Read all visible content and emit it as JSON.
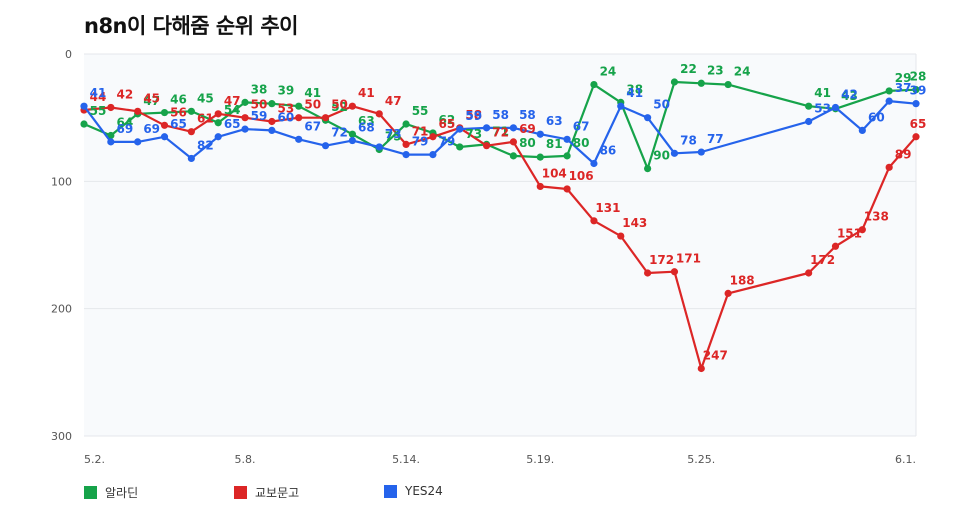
{
  "title": "n8n이 다해줌 순위 추이",
  "chart_data": {
    "type": "line",
    "title": "n8n이 다해줌 순위 추이",
    "xlabel": "",
    "ylabel": "",
    "ylim": [
      300,
      0
    ],
    "y_reversed": true,
    "y_ticks": [
      "0",
      "100",
      "200",
      "300"
    ],
    "x_ticks": [
      "5.2.",
      "5.8.",
      "5.14.",
      "5.19.",
      "5.25.",
      "6.1."
    ],
    "grid": true,
    "legend_position": "bottom",
    "series": [
      {
        "name": "알라딘",
        "color": "#16a34a",
        "points": [
          [
            0,
            55
          ],
          [
            1,
            64
          ],
          [
            2,
            47
          ],
          [
            3,
            46
          ],
          [
            4,
            45
          ],
          [
            5,
            54
          ],
          [
            6,
            38
          ],
          [
            7,
            39
          ],
          [
            8,
            41
          ],
          [
            9,
            52
          ],
          [
            10,
            63
          ],
          [
            11,
            75
          ],
          [
            12,
            55
          ],
          [
            13,
            62
          ],
          [
            14,
            73
          ],
          [
            15,
            71
          ],
          [
            16,
            80
          ],
          [
            17,
            81
          ],
          [
            18,
            80
          ],
          [
            19,
            24
          ],
          [
            20,
            38
          ],
          [
            21,
            90
          ],
          [
            22,
            22
          ],
          [
            23,
            23
          ],
          [
            24,
            24
          ],
          [
            27,
            41
          ],
          [
            28,
            43
          ],
          [
            30,
            29
          ],
          [
            31,
            28
          ]
        ]
      },
      {
        "name": "교보문고",
        "color": "#dc2626",
        "points": [
          [
            0,
            44
          ],
          [
            1,
            42
          ],
          [
            2,
            45
          ],
          [
            3,
            56
          ],
          [
            4,
            61
          ],
          [
            5,
            47
          ],
          [
            6,
            50
          ],
          [
            7,
            53
          ],
          [
            8,
            50
          ],
          [
            9,
            50
          ],
          [
            10,
            41
          ],
          [
            11,
            47
          ],
          [
            12,
            71
          ],
          [
            13,
            65
          ],
          [
            14,
            58
          ],
          [
            15,
            72
          ],
          [
            16,
            69
          ],
          [
            17,
            104
          ],
          [
            18,
            106
          ],
          [
            19,
            131
          ],
          [
            20,
            143
          ],
          [
            21,
            172
          ],
          [
            22,
            171
          ],
          [
            23,
            247
          ],
          [
            24,
            188
          ],
          [
            27,
            172
          ],
          [
            28,
            151
          ],
          [
            29,
            138
          ],
          [
            30,
            89
          ],
          [
            31,
            65
          ]
        ]
      },
      {
        "name": "YES24",
        "color": "#2563eb",
        "points": [
          [
            0,
            41
          ],
          [
            1,
            69
          ],
          [
            2,
            69
          ],
          [
            3,
            65
          ],
          [
            4,
            82
          ],
          [
            5,
            65
          ],
          [
            6,
            59
          ],
          [
            7,
            60
          ],
          [
            8,
            67
          ],
          [
            9,
            72
          ],
          [
            10,
            68
          ],
          [
            11,
            73
          ],
          [
            12,
            79
          ],
          [
            13,
            79
          ],
          [
            14,
            59
          ],
          [
            15,
            58
          ],
          [
            16,
            58
          ],
          [
            17,
            63
          ],
          [
            18,
            67
          ],
          [
            19,
            86
          ],
          [
            20,
            41
          ],
          [
            21,
            50
          ],
          [
            22,
            78
          ],
          [
            23,
            77
          ],
          [
            27,
            53
          ],
          [
            28,
            42
          ],
          [
            29,
            60
          ],
          [
            30,
            37
          ],
          [
            31,
            39
          ]
        ]
      }
    ]
  }
}
